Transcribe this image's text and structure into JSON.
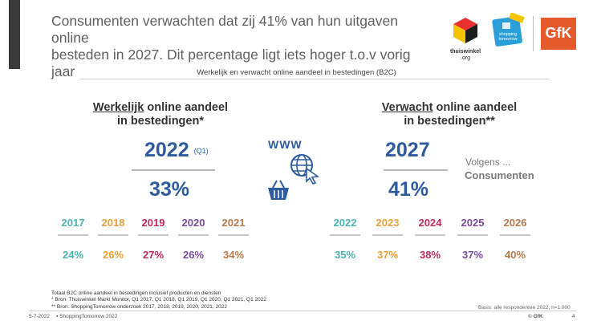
{
  "title": {
    "line1": "Consumenten verwachten dat zij 41% van hun uitgaven online",
    "line2": "besteden in 2027. Dit percentage ligt iets hoger t.o.v vorig jaar"
  },
  "logos": {
    "thuiswinkel_line1": "thuiswinkel",
    "thuiswinkel_line2": ".org",
    "shopping_line1": "shopping",
    "shopping_line2": "tomorrow",
    "gfk": "GfK"
  },
  "subtitle": "Werkelijk en verwacht online aandeel in bestedingen (B2C)",
  "left": {
    "heading_em": "Werkelijk",
    "heading_rest": " online aandeel",
    "heading_line2": "in bestedingen*",
    "year": "2022",
    "year_note": "(Q1)",
    "value": "33%",
    "years": [
      {
        "label": "2017",
        "value": "24%",
        "color": "#4bb3ad"
      },
      {
        "label": "2018",
        "value": "26%",
        "color": "#e8a13a"
      },
      {
        "label": "2019",
        "value": "27%",
        "color": "#c02a5b"
      },
      {
        "label": "2020",
        "value": "26%",
        "color": "#7a4b9c"
      },
      {
        "label": "2021",
        "value": "34%",
        "color": "#b47a4e"
      }
    ]
  },
  "right": {
    "heading_em": "Verwacht",
    "heading_rest": " online aandeel",
    "heading_line2": "in bestedingen**",
    "year": "2027",
    "value": "41%",
    "volgens": "Volgens ...",
    "consumenten": "Consumenten",
    "years": [
      {
        "label": "2022",
        "value": "35%",
        "color": "#4bb3ad"
      },
      {
        "label": "2023",
        "value": "37%",
        "color": "#e8a13a"
      },
      {
        "label": "2024",
        "value": "38%",
        "color": "#c02a5b"
      },
      {
        "label": "2025",
        "value": "37%",
        "color": "#7a4b9c"
      },
      {
        "label": "2026",
        "value": "40%",
        "color": "#b47a4e"
      }
    ]
  },
  "center": {
    "www": "WWW"
  },
  "footer": {
    "note1": "Totaal B2C online aandeel in bestedingen inclusief producten en diensten",
    "note2": "* Bron: Thuiswinkel Markt Monitor, Q1 2017, Q1 2018, Q1 2019, Q1 2020, Q1 2021, Q1 2022",
    "note3": "** Bron: ShoppingTomorrow onderzoek 2017, 2018, 2019, 2020, 2021, 2022",
    "basis": "Basis: alle respondenten 2022, n=1.000",
    "date": "5-7-2022",
    "event": "ShoppingTomorrow 2022",
    "copyright": "© GfK",
    "page": "4"
  },
  "colors": {
    "accent_blue": "#2e5a9e"
  }
}
